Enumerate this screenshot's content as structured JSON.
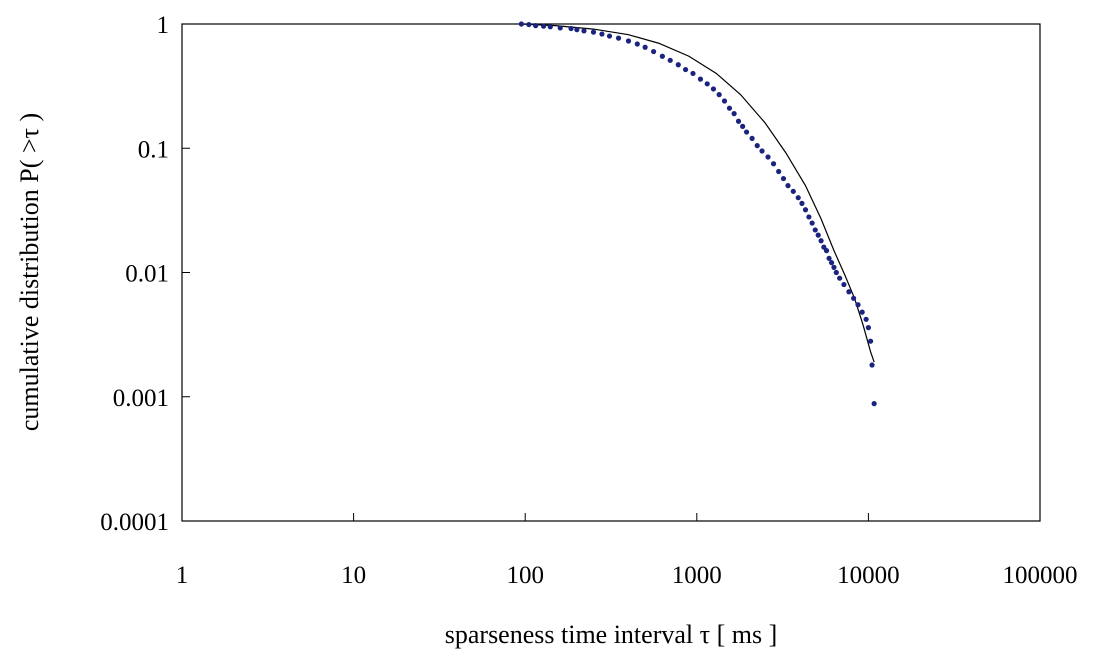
{
  "chart_data": {
    "type": "scatter",
    "title": "",
    "xlabel": "sparseness time interval τ [ ms ]",
    "ylabel": "cumulative distribution P( >τ )",
    "x_scale": "log",
    "y_scale": "log",
    "xlim": [
      1,
      100000
    ],
    "ylim": [
      0.0001,
      1
    ],
    "x_ticks": [
      {
        "value": 1,
        "label": "1"
      },
      {
        "value": 10,
        "label": "10"
      },
      {
        "value": 100,
        "label": "100"
      },
      {
        "value": 1000,
        "label": "1000"
      },
      {
        "value": 10000,
        "label": "10000"
      },
      {
        "value": 100000,
        "label": "100000"
      }
    ],
    "y_ticks": [
      {
        "value": 1,
        "label": "1"
      },
      {
        "value": 0.1,
        "label": "0.1"
      },
      {
        "value": 0.01,
        "label": "0.01"
      },
      {
        "value": 0.001,
        "label": "0.001"
      },
      {
        "value": 0.0001,
        "label": "0.0001"
      }
    ],
    "grid": false,
    "legend": "none",
    "marker_color": "#1a237e",
    "fit_line_color": "#000000",
    "series": [
      {
        "kind": "points",
        "x": [
          95,
          105,
          115,
          128,
          140,
          160,
          185,
          200,
          220,
          250,
          280,
          310,
          350,
          400,
          450,
          500,
          560,
          630,
          700,
          780,
          860,
          950,
          1050,
          1150,
          1250,
          1350,
          1450,
          1550,
          1650,
          1750,
          1850,
          1950,
          2100,
          2250,
          2400,
          2600,
          2800,
          3000,
          3200,
          3400,
          3650,
          3900,
          4100,
          4300,
          4500,
          4700,
          4900,
          5100,
          5300,
          5500,
          5700,
          5900,
          6100,
          6300,
          6500,
          6800,
          7200,
          7700,
          8200,
          8700,
          9200,
          9700,
          10000,
          10300,
          10500,
          10800
        ],
        "y": [
          1.0,
          0.99,
          0.97,
          0.96,
          0.95,
          0.93,
          0.92,
          0.9,
          0.88,
          0.86,
          0.83,
          0.8,
          0.77,
          0.73,
          0.69,
          0.65,
          0.6,
          0.55,
          0.51,
          0.47,
          0.43,
          0.4,
          0.36,
          0.33,
          0.3,
          0.27,
          0.24,
          0.21,
          0.19,
          0.165,
          0.15,
          0.135,
          0.12,
          0.105,
          0.095,
          0.085,
          0.075,
          0.065,
          0.057,
          0.05,
          0.045,
          0.04,
          0.036,
          0.032,
          0.028,
          0.025,
          0.022,
          0.02,
          0.018,
          0.016,
          0.015,
          0.013,
          0.012,
          0.011,
          0.01,
          0.009,
          0.008,
          0.007,
          0.0062,
          0.0055,
          0.0048,
          0.0042,
          0.0036,
          0.0028,
          0.0018,
          0.00088
        ]
      },
      {
        "kind": "fit_line",
        "x": [
          95,
          150,
          250,
          400,
          600,
          900,
          1300,
          1800,
          2500,
          3300,
          4300,
          5300,
          6300,
          7300,
          8300,
          9300,
          10300,
          10800
        ],
        "y": [
          1.0,
          0.97,
          0.91,
          0.82,
          0.7,
          0.55,
          0.4,
          0.27,
          0.16,
          0.092,
          0.05,
          0.027,
          0.015,
          0.0095,
          0.0062,
          0.0038,
          0.0023,
          0.0019
        ]
      }
    ]
  }
}
